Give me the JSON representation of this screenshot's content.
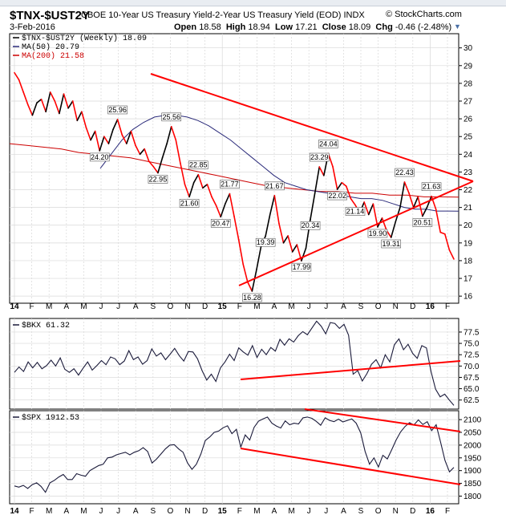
{
  "header": {
    "symbol": "$TNX-$UST2Y",
    "description": "CBOE 10-Year US Treasury Yield-2-Year US Treasury Yield (EOD)  INDX",
    "brand": "© StockCharts.com",
    "date": "3-Feb-2016",
    "open_label": "Open",
    "open": "18.58",
    "high_label": "High",
    "high": "18.94",
    "low_label": "Low",
    "low": "17.21",
    "close_label": "Close",
    "close": "18.09",
    "chg_label": "Chg",
    "chg": "-0.46 (-2.48%)",
    "arrow": "▼"
  },
  "colors": {
    "price": "#000000",
    "down": "#ff0000",
    "ma50": "#2a2a7a",
    "ma200": "#cc0000",
    "trend": "#ff0000",
    "grid": "#d8d8d8"
  },
  "chart_data": [
    {
      "type": "line",
      "panel": "main",
      "legend": [
        "$TNX-$UST2Y (Weekly) 18.09",
        "MA(50) 20.79",
        "MA(200) 21.58"
      ],
      "ylim": [
        15.6,
        30.8
      ],
      "yticks": [
        16,
        17,
        18,
        19,
        20,
        21,
        22,
        23,
        24,
        25,
        26,
        27,
        28,
        29,
        30
      ],
      "xlabels": [
        "14",
        "F",
        "M",
        "A",
        "M",
        "J",
        "J",
        "A",
        "S",
        "O",
        "N",
        "D",
        "15",
        "F",
        "M",
        "A",
        "M",
        "J",
        "J",
        "A",
        "S",
        "O",
        "N",
        "D",
        "16",
        "F"
      ],
      "series": [
        {
          "name": "$TNX-$UST2Y (Weekly) 18.09",
          "values": [
            28.6,
            28.2,
            27.5,
            26.8,
            26.2,
            26.9,
            27.1,
            26.4,
            27.5,
            27.0,
            26.3,
            27.4,
            26.6,
            27.0,
            25.9,
            26.4,
            25.5,
            24.8,
            25.3,
            24.2,
            25.0,
            24.6,
            25.4,
            25.96,
            25.1,
            24.6,
            25.3,
            24.5,
            24.0,
            24.3,
            23.6,
            23.3,
            22.95,
            23.8,
            24.6,
            25.56,
            24.8,
            23.5,
            22.3,
            21.6,
            22.4,
            22.85,
            22.1,
            22.3,
            21.6,
            21.1,
            20.47,
            21.2,
            21.77,
            20.5,
            19.2,
            17.8,
            16.8,
            16.28,
            17.5,
            18.8,
            19.39,
            20.6,
            21.67,
            20.1,
            19.0,
            19.4,
            18.5,
            18.9,
            17.99,
            18.7,
            20.34,
            21.8,
            23.29,
            22.8,
            24.04,
            23.3,
            22.02,
            22.4,
            22.2,
            21.5,
            21.14,
            20.7,
            21.3,
            20.6,
            21.2,
            19.9,
            20.4,
            19.7,
            19.31,
            20.2,
            21.0,
            22.43,
            21.8,
            21.0,
            21.6,
            20.51,
            21.0,
            21.63,
            20.9,
            19.6,
            19.5,
            18.6,
            18.09
          ]
        },
        {
          "name": "MA(50) 20.79",
          "values": [
            23.2,
            24.0,
            24.8,
            25.4,
            25.8,
            26.1,
            26.2,
            26.2,
            26.1,
            25.9,
            25.6,
            25.2,
            24.8,
            24.3,
            23.8,
            23.3,
            22.8,
            22.4,
            22.2,
            22.0,
            21.9,
            21.8,
            21.7,
            21.6,
            21.5,
            21.5,
            21.4,
            21.2,
            21.0,
            20.9,
            20.9,
            20.8,
            20.8,
            20.79
          ]
        },
        {
          "name": "MA(200) 21.58",
          "values": [
            24.6,
            24.5,
            24.4,
            24.3,
            24.1,
            24.0,
            23.9,
            23.8,
            23.6,
            23.4,
            23.2,
            23.0,
            22.8,
            22.6,
            22.4,
            22.2,
            22.1,
            22.0,
            21.9,
            21.9,
            21.8,
            21.8,
            21.7,
            21.7,
            21.6,
            21.6,
            21.58
          ]
        }
      ],
      "data_labels": [
        {
          "value": "25.96"
        },
        {
          "value": "25.56"
        },
        {
          "value": "24.20"
        },
        {
          "value": "22.95"
        },
        {
          "value": "22.85"
        },
        {
          "value": "21.60"
        },
        {
          "value": "21.77"
        },
        {
          "value": "20.47"
        },
        {
          "value": "16.28"
        },
        {
          "value": "19.39"
        },
        {
          "value": "21.67"
        },
        {
          "value": "17.99"
        },
        {
          "value": "20.34"
        },
        {
          "value": "23.29"
        },
        {
          "value": "24.04"
        },
        {
          "value": "22.02"
        },
        {
          "value": "21.14"
        },
        {
          "value": "19.90"
        },
        {
          "value": "19.31"
        },
        {
          "value": "22.43"
        },
        {
          "value": "20.51"
        },
        {
          "value": "21.63"
        }
      ]
    },
    {
      "type": "line",
      "panel": "bkx",
      "legend": [
        "$BKX 61.32"
      ],
      "ylim": [
        60.5,
        80.5
      ],
      "yticks": [
        62.5,
        65.0,
        67.5,
        70.0,
        72.5,
        75.0,
        77.5
      ],
      "series": [
        {
          "name": "$BKX 61.32",
          "values": [
            68.6,
            69.8,
            68.8,
            70.9,
            69.6,
            70.8,
            69.4,
            70.1,
            71.3,
            70.0,
            71.8,
            69.3,
            68.6,
            69.4,
            68.0,
            69.5,
            70.9,
            69.1,
            70.1,
            71.2,
            70.3,
            72.0,
            71.6,
            70.3,
            71.1,
            73.4,
            71.4,
            72.0,
            70.4,
            71.2,
            73.8,
            72.2,
            72.9,
            71.4,
            72.6,
            73.9,
            72.3,
            71.1,
            73.2,
            73.1,
            71.6,
            69.0,
            66.9,
            68.2,
            66.6,
            69.6,
            70.9,
            72.6,
            71.2,
            74.0,
            73.1,
            72.4,
            74.5,
            71.9,
            73.7,
            72.5,
            74.1,
            73.3,
            75.9,
            74.6,
            76.0,
            75.3,
            76.7,
            77.6,
            76.9,
            78.4,
            79.9,
            78.8,
            77.1,
            79.6,
            79.4,
            78.3,
            79.2,
            76.8,
            68.2,
            69.0,
            66.7,
            68.3,
            70.4,
            71.4,
            69.6,
            72.5,
            70.9,
            74.7,
            76.0,
            73.6,
            74.8,
            72.8,
            71.7,
            74.5,
            74.0,
            68.8,
            64.9,
            63.2,
            63.8,
            62.5,
            61.32
          ]
        }
      ]
    },
    {
      "type": "line",
      "panel": "spx",
      "legend": [
        "$SPX 1912.53"
      ],
      "ylim": [
        1770,
        2135
      ],
      "yticks": [
        1800,
        1850,
        1900,
        1950,
        2000,
        2050,
        2100
      ],
      "series": [
        {
          "name": "$SPX 1912.53",
          "values": [
            1840,
            1835,
            1842,
            1830,
            1845,
            1852,
            1838,
            1815,
            1852,
            1862,
            1875,
            1885,
            1865,
            1865,
            1888,
            1882,
            1878,
            1900,
            1910,
            1920,
            1925,
            1950,
            1953,
            1962,
            1967,
            1972,
            1962,
            1972,
            1978,
            1990,
            1975,
            1930,
            1945,
            1965,
            1985,
            2000,
            2002,
            1985,
            1972,
            1930,
            1905,
            1925,
            1965,
            2018,
            2032,
            2050,
            2055,
            2068,
            2076,
            2045,
            2062,
            1992,
            2040,
            2020,
            2070,
            2094,
            2103,
            2110,
            2086,
            2075,
            2067,
            2095,
            2080,
            2086,
            2083,
            2107,
            2110,
            2105,
            2093,
            2078,
            2107,
            2097,
            2092,
            2102,
            2091,
            2097,
            2103,
            2086,
            2048,
            1975,
            1925,
            1950,
            1914,
            1960,
            1946,
            1982,
            2020,
            2052,
            2073,
            2088,
            2079,
            2099,
            2081,
            2092,
            2057,
            2080,
            2012,
            1940,
            1895,
            1912.53
          ]
        }
      ]
    }
  ]
}
